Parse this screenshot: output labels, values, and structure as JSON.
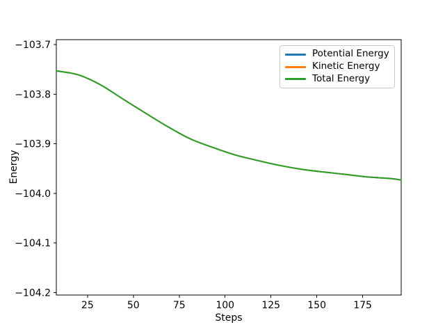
{
  "figure": {
    "background": "#ffffff",
    "text_color": "#000000"
  },
  "chart_data": {
    "type": "line",
    "title": "",
    "xlabel": "Steps",
    "ylabel": "Energy",
    "grid": false,
    "legend_position": "upper right",
    "xlim": [
      8,
      196
    ],
    "ylim": [
      -104.205,
      -103.69
    ],
    "xticks": [
      25,
      50,
      75,
      100,
      125,
      150,
      175
    ],
    "xtick_labels": [
      "25",
      "50",
      "75",
      "100",
      "125",
      "150",
      "175"
    ],
    "yticks": [
      -103.7,
      -103.8,
      -103.9,
      -104.0,
      -104.1,
      -104.2
    ],
    "ytick_labels": [
      "−103.7",
      "−103.8",
      "−103.9",
      "−104.0",
      "−104.1",
      "−104.2"
    ],
    "x": [
      8,
      20,
      32,
      44,
      57,
      69,
      81,
      93,
      105,
      117,
      129,
      141,
      154,
      166,
      178,
      190,
      196
    ],
    "series": [
      {
        "name": "Potential Energy",
        "color": "#1f77b4",
        "values": [
          -103.753,
          -103.761,
          -103.781,
          -103.809,
          -103.839,
          -103.866,
          -103.89,
          -103.907,
          -103.922,
          -103.933,
          -103.943,
          -103.951,
          -103.957,
          -103.962,
          -103.967,
          -103.97,
          -103.973
        ]
      },
      {
        "name": "Kinetic Energy",
        "color": "#ff7f0e",
        "values": [
          -103.753,
          -103.761,
          -103.781,
          -103.809,
          -103.839,
          -103.866,
          -103.89,
          -103.907,
          -103.922,
          -103.933,
          -103.943,
          -103.951,
          -103.957,
          -103.962,
          -103.967,
          -103.97,
          -103.973
        ]
      },
      {
        "name": "Total Energy",
        "color": "#2ca02c",
        "values": [
          -103.753,
          -103.761,
          -103.781,
          -103.809,
          -103.839,
          -103.866,
          -103.89,
          -103.907,
          -103.922,
          -103.933,
          -103.943,
          -103.951,
          -103.957,
          -103.962,
          -103.967,
          -103.97,
          -103.973
        ]
      }
    ],
    "note": "All three series overlap exactly; only the last-drawn green Total Energy line is visible in the plot area."
  }
}
